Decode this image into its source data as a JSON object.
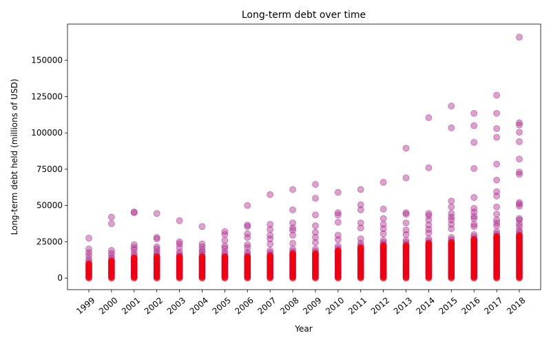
{
  "chart_data": {
    "type": "scatter",
    "title": "Long-term debt over time",
    "xlabel": "Year",
    "ylabel": "Long-term debt held (millions of USD)",
    "x_categories": [
      "1999",
      "2000",
      "2001",
      "2002",
      "2003",
      "2004",
      "2005",
      "2006",
      "2007",
      "2008",
      "2009",
      "2010",
      "2011",
      "2012",
      "2013",
      "2014",
      "2015",
      "2016",
      "2017",
      "2018"
    ],
    "y_ticks": [
      0,
      25000,
      50000,
      75000,
      100000,
      125000,
      150000
    ],
    "y_tick_labels": [
      "0",
      "25000",
      "50000",
      "75000",
      "100000",
      "125000",
      "150000"
    ],
    "ylim": [
      -8000,
      175000
    ],
    "grid": false,
    "colors": {
      "outlier": "#b0308f",
      "dense": "#ff0000"
    },
    "dense_max": [
      13000,
      15000,
      17000,
      18000,
      18000,
      18000,
      18000,
      18000,
      19000,
      20000,
      20000,
      22000,
      24000,
      26000,
      26000,
      27000,
      28000,
      30000,
      32000,
      33000
    ],
    "outliers": [
      [
        1999,
        27500
      ],
      [
        1999,
        20000
      ],
      [
        1999,
        17500
      ],
      [
        1999,
        15500
      ],
      [
        2000,
        42000
      ],
      [
        2000,
        37500
      ],
      [
        2000,
        19000
      ],
      [
        2000,
        17000
      ],
      [
        2001,
        45500
      ],
      [
        2001,
        45000
      ],
      [
        2001,
        23000
      ],
      [
        2001,
        21000
      ],
      [
        2001,
        19500
      ],
      [
        2002,
        44500
      ],
      [
        2002,
        28000
      ],
      [
        2002,
        27000
      ],
      [
        2002,
        21500
      ],
      [
        2002,
        20000
      ],
      [
        2003,
        39500
      ],
      [
        2003,
        25000
      ],
      [
        2003,
        23500
      ],
      [
        2003,
        21000
      ],
      [
        2004,
        35500
      ],
      [
        2004,
        23500
      ],
      [
        2004,
        21500
      ],
      [
        2004,
        19500
      ],
      [
        2005,
        32000
      ],
      [
        2005,
        30000
      ],
      [
        2005,
        26000
      ],
      [
        2005,
        22000
      ],
      [
        2005,
        20500
      ],
      [
        2006,
        50000
      ],
      [
        2006,
        36500
      ],
      [
        2006,
        35500
      ],
      [
        2006,
        30500
      ],
      [
        2006,
        28000
      ],
      [
        2006,
        23000
      ],
      [
        2006,
        21000
      ],
      [
        2007,
        57500
      ],
      [
        2007,
        37000
      ],
      [
        2007,
        33500
      ],
      [
        2007,
        29500
      ],
      [
        2007,
        27000
      ],
      [
        2007,
        23500
      ],
      [
        2008,
        61000
      ],
      [
        2008,
        47000
      ],
      [
        2008,
        38000
      ],
      [
        2008,
        34500
      ],
      [
        2008,
        33000
      ],
      [
        2008,
        29500
      ],
      [
        2008,
        24000
      ],
      [
        2009,
        64500
      ],
      [
        2009,
        55000
      ],
      [
        2009,
        43500
      ],
      [
        2009,
        36000
      ],
      [
        2009,
        31500
      ],
      [
        2009,
        28000
      ],
      [
        2009,
        24500
      ],
      [
        2010,
        59000
      ],
      [
        2010,
        45000
      ],
      [
        2010,
        43500
      ],
      [
        2010,
        38500
      ],
      [
        2010,
        29500
      ],
      [
        2010,
        26500
      ],
      [
        2011,
        61000
      ],
      [
        2011,
        50500
      ],
      [
        2011,
        47000
      ],
      [
        2011,
        38000
      ],
      [
        2011,
        34500
      ],
      [
        2011,
        27000
      ],
      [
        2012,
        66000
      ],
      [
        2012,
        47500
      ],
      [
        2012,
        41000
      ],
      [
        2012,
        37000
      ],
      [
        2012,
        34000
      ],
      [
        2012,
        30500
      ],
      [
        2013,
        89500
      ],
      [
        2013,
        69000
      ],
      [
        2013,
        45000
      ],
      [
        2013,
        44000
      ],
      [
        2013,
        38000
      ],
      [
        2013,
        33000
      ],
      [
        2013,
        30000
      ],
      [
        2014,
        110500
      ],
      [
        2014,
        76000
      ],
      [
        2014,
        44500
      ],
      [
        2014,
        43000
      ],
      [
        2014,
        40000
      ],
      [
        2014,
        36500
      ],
      [
        2014,
        33500
      ],
      [
        2014,
        31000
      ],
      [
        2015,
        118500
      ],
      [
        2015,
        103500
      ],
      [
        2015,
        53000
      ],
      [
        2015,
        49000
      ],
      [
        2015,
        44500
      ],
      [
        2015,
        42000
      ],
      [
        2015,
        40000
      ],
      [
        2015,
        37000
      ],
      [
        2015,
        34000
      ],
      [
        2016,
        113500
      ],
      [
        2016,
        105000
      ],
      [
        2016,
        93500
      ],
      [
        2016,
        75500
      ],
      [
        2016,
        55500
      ],
      [
        2016,
        48000
      ],
      [
        2016,
        45500
      ],
      [
        2016,
        42500
      ],
      [
        2016,
        41000
      ],
      [
        2016,
        37000
      ],
      [
        2016,
        35500
      ],
      [
        2017,
        126000
      ],
      [
        2017,
        113500
      ],
      [
        2017,
        103000
      ],
      [
        2017,
        97000
      ],
      [
        2017,
        78500
      ],
      [
        2017,
        67500
      ],
      [
        2017,
        59500
      ],
      [
        2017,
        56500
      ],
      [
        2017,
        49000
      ],
      [
        2017,
        44000
      ],
      [
        2017,
        40000
      ],
      [
        2017,
        38000
      ],
      [
        2017,
        36000
      ],
      [
        2018,
        166000
      ],
      [
        2018,
        107000
      ],
      [
        2018,
        105500
      ],
      [
        2018,
        100500
      ],
      [
        2018,
        94000
      ],
      [
        2018,
        82000
      ],
      [
        2018,
        73000
      ],
      [
        2018,
        71500
      ],
      [
        2018,
        52000
      ],
      [
        2018,
        51000
      ],
      [
        2018,
        49500
      ],
      [
        2018,
        41000
      ],
      [
        2018,
        40000
      ],
      [
        2018,
        37500
      ],
      [
        2018,
        35500
      ]
    ]
  }
}
